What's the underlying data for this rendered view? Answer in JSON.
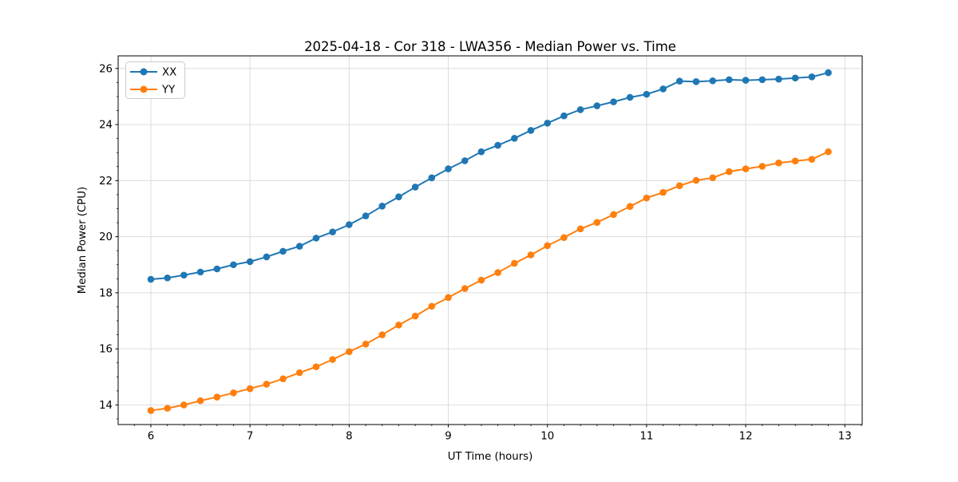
{
  "chart_data": {
    "type": "line",
    "title": "2025-04-18 - Cor 318 - LWA356 - Median Power vs. Time",
    "xlabel": "UT Time (hours)",
    "ylabel": "Median Power (CPU)",
    "xlim": [
      5.67,
      13.175
    ],
    "ylim": [
      13.3,
      26.45
    ],
    "xticks": [
      6,
      7,
      8,
      9,
      10,
      11,
      12,
      13
    ],
    "yticks": [
      14,
      16,
      18,
      20,
      22,
      24,
      26
    ],
    "x_minor_step": 0.16667,
    "y_minor_step": 0.5,
    "grid": true,
    "legend_position": "upper left",
    "x": [
      6.0,
      6.167,
      6.333,
      6.5,
      6.667,
      6.833,
      7.0,
      7.167,
      7.333,
      7.5,
      7.667,
      7.833,
      8.0,
      8.167,
      8.333,
      8.5,
      8.667,
      8.833,
      9.0,
      9.167,
      9.333,
      9.5,
      9.667,
      9.833,
      10.0,
      10.167,
      10.333,
      10.5,
      10.667,
      10.833,
      11.0,
      11.167,
      11.333,
      11.5,
      11.667,
      11.833,
      12.0,
      12.167,
      12.333,
      12.5,
      12.667,
      12.833
    ],
    "series": [
      {
        "name": "XX",
        "color": "#1f77b4",
        "values": [
          18.48,
          18.53,
          18.63,
          18.74,
          18.85,
          19.0,
          19.11,
          19.28,
          19.48,
          19.66,
          19.95,
          20.17,
          20.43,
          20.74,
          21.09,
          21.42,
          21.77,
          22.1,
          22.42,
          22.71,
          23.03,
          23.26,
          23.51,
          23.79,
          24.05,
          24.31,
          24.53,
          24.67,
          24.81,
          24.97,
          25.08,
          25.27,
          25.55,
          25.53,
          25.56,
          25.6,
          25.58,
          25.6,
          25.62,
          25.66,
          25.7,
          25.85
        ]
      },
      {
        "name": "YY",
        "color": "#ff7f0e",
        "values": [
          13.8,
          13.88,
          14.0,
          14.15,
          14.28,
          14.43,
          14.58,
          14.74,
          14.93,
          15.15,
          15.36,
          15.62,
          15.9,
          16.17,
          16.5,
          16.85,
          17.17,
          17.52,
          17.83,
          18.15,
          18.45,
          18.72,
          19.05,
          19.35,
          19.68,
          19.97,
          20.28,
          20.51,
          20.79,
          21.08,
          21.38,
          21.58,
          21.82,
          22.01,
          22.1,
          22.32,
          22.42,
          22.51,
          22.63,
          22.7,
          22.76,
          23.03
        ]
      }
    ],
    "colors": {
      "grid": "#dcdcdc",
      "spine": "#000000",
      "background": "#ffffff",
      "legend_border": "#cccccc"
    }
  }
}
